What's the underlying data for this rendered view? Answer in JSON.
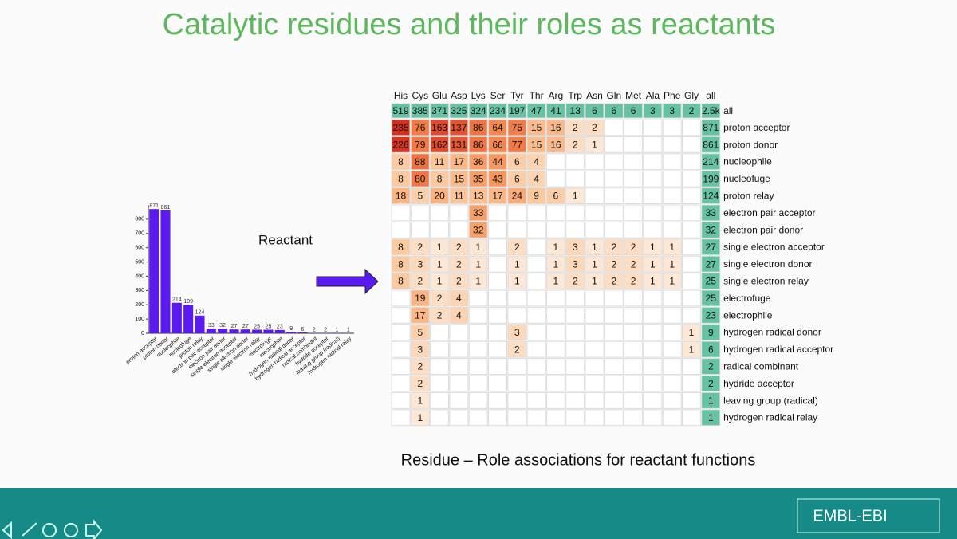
{
  "title": "Catalytic residues and their roles as reactants",
  "chart_data": {
    "type": "bar",
    "categories": [
      "proton acceptor",
      "proton donor",
      "nucleophile",
      "nucleofuge",
      "proton relay",
      "electron pair acceptor",
      "electron pair donor",
      "single electron acceptor",
      "single electron donor",
      "single electron relay",
      "electrofuge",
      "electrophile",
      "hydrogen radical donor",
      "hydrogen radical acceptor",
      "radical combinant",
      "hydride acceptor",
      "leaving group (radical)",
      "hydrogen radical relay"
    ],
    "values": [
      871,
      861,
      214,
      199,
      124,
      33,
      32,
      27,
      27,
      25,
      25,
      23,
      9,
      6,
      2,
      2,
      1,
      1
    ],
    "color": "#5a1af0",
    "ylim": [
      0,
      900
    ],
    "yticks": [
      0,
      100,
      200,
      300,
      400,
      500,
      600,
      700,
      800
    ]
  },
  "label": "Reactant",
  "heatmap": {
    "columns": [
      "His",
      "Cys",
      "Glu",
      "Asp",
      "Lys",
      "Ser",
      "Tyr",
      "Thr",
      "Arg",
      "Trp",
      "Asn",
      "Gln",
      "Met",
      "Ala",
      "Phe",
      "Gly",
      "all"
    ],
    "header_row": {
      "label": "all",
      "values": [
        519,
        385,
        371,
        325,
        324,
        234,
        197,
        47,
        41,
        13,
        6,
        6,
        6,
        3,
        3,
        2
      ],
      "total": "2.5k"
    },
    "rows": [
      {
        "label": "proton acceptor",
        "values": [
          235,
          76,
          163,
          137,
          86,
          64,
          75,
          15,
          16,
          2,
          2,
          null,
          null,
          null,
          null,
          null
        ],
        "total": 871
      },
      {
        "label": "proton donor",
        "values": [
          226,
          79,
          162,
          131,
          86,
          66,
          77,
          15,
          16,
          2,
          1,
          null,
          null,
          null,
          null,
          null
        ],
        "total": 861
      },
      {
        "label": "nucleophile",
        "values": [
          8,
          88,
          11,
          17,
          36,
          44,
          6,
          4,
          null,
          null,
          null,
          null,
          null,
          null,
          null,
          null
        ],
        "total": 214
      },
      {
        "label": "nucleofuge",
        "values": [
          8,
          80,
          8,
          15,
          35,
          43,
          6,
          4,
          null,
          null,
          null,
          null,
          null,
          null,
          null,
          null
        ],
        "total": 199
      },
      {
        "label": "proton relay",
        "values": [
          18,
          5,
          20,
          11,
          13,
          17,
          24,
          9,
          6,
          1,
          null,
          null,
          null,
          null,
          null,
          null
        ],
        "total": 124
      },
      {
        "label": "electron pair acceptor",
        "values": [
          null,
          null,
          null,
          null,
          33,
          null,
          null,
          null,
          null,
          null,
          null,
          null,
          null,
          null,
          null,
          null
        ],
        "total": 33
      },
      {
        "label": "electron pair donor",
        "values": [
          null,
          null,
          null,
          null,
          32,
          null,
          null,
          null,
          null,
          null,
          null,
          null,
          null,
          null,
          null,
          null
        ],
        "total": 32
      },
      {
        "label": "single electron acceptor",
        "values": [
          8,
          2,
          1,
          2,
          1,
          null,
          2,
          null,
          1,
          3,
          1,
          2,
          2,
          1,
          1,
          null
        ],
        "total": 27
      },
      {
        "label": "single electron donor",
        "values": [
          8,
          3,
          1,
          2,
          1,
          null,
          1,
          null,
          1,
          3,
          1,
          2,
          2,
          1,
          1,
          null
        ],
        "total": 27
      },
      {
        "label": "single electron relay",
        "values": [
          8,
          2,
          1,
          2,
          1,
          null,
          1,
          null,
          1,
          2,
          1,
          2,
          2,
          1,
          1,
          null
        ],
        "total": 25
      },
      {
        "label": "electrofuge",
        "values": [
          null,
          19,
          2,
          4,
          null,
          null,
          null,
          null,
          null,
          null,
          null,
          null,
          null,
          null,
          null,
          null
        ],
        "total": 25
      },
      {
        "label": "electrophile",
        "values": [
          null,
          17,
          2,
          4,
          null,
          null,
          null,
          null,
          null,
          null,
          null,
          null,
          null,
          null,
          null,
          null
        ],
        "total": 23
      },
      {
        "label": "hydrogen radical donor",
        "values": [
          null,
          5,
          null,
          null,
          null,
          null,
          3,
          null,
          null,
          null,
          null,
          null,
          null,
          null,
          null,
          1
        ],
        "total": 9
      },
      {
        "label": "hydrogen radical acceptor",
        "values": [
          null,
          3,
          null,
          null,
          null,
          null,
          2,
          null,
          null,
          null,
          null,
          null,
          null,
          null,
          null,
          1
        ],
        "total": 6
      },
      {
        "label": "radical combinant",
        "values": [
          null,
          2,
          null,
          null,
          null,
          null,
          null,
          null,
          null,
          null,
          null,
          null,
          null,
          null,
          null,
          null
        ],
        "total": 2
      },
      {
        "label": "hydride acceptor",
        "values": [
          null,
          2,
          null,
          null,
          null,
          null,
          null,
          null,
          null,
          null,
          null,
          null,
          null,
          null,
          null,
          null
        ],
        "total": 2
      },
      {
        "label": "leaving group (radical)",
        "values": [
          null,
          1,
          null,
          null,
          null,
          null,
          null,
          null,
          null,
          null,
          null,
          null,
          null,
          null,
          null,
          null
        ],
        "total": 1
      },
      {
        "label": "hydrogen radical relay",
        "values": [
          null,
          1,
          null,
          null,
          null,
          null,
          null,
          null,
          null,
          null,
          null,
          null,
          null,
          null,
          null,
          null
        ],
        "total": 1
      }
    ]
  },
  "caption": "Residue – Role associations for reactant functions",
  "footer": {
    "logo": "EMBL-EBI"
  }
}
